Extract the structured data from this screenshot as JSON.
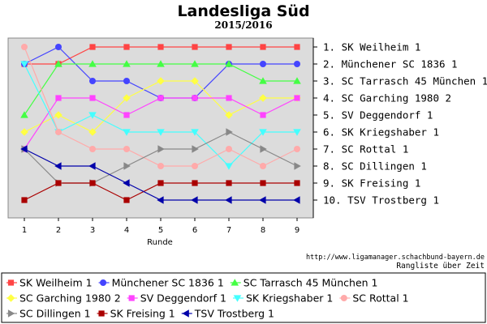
{
  "chart_data": {
    "type": "line",
    "title": "Landesliga Süd",
    "subtitle": "2015/2016",
    "xlabel": "Runde",
    "ylabel": "",
    "x": [
      1,
      2,
      3,
      4,
      5,
      6,
      7,
      8,
      9
    ],
    "ylim": [
      1,
      10
    ],
    "y_inverted": true,
    "grid": false,
    "rank_labels": [
      "1.  SK Weilheim 1",
      "2.  Münchener SC 1836 1",
      "3.  SC Tarrasch 45 München 1",
      "4.  SC Garching 1980 2",
      "5.  SV Deggendorf 1",
      "6.  SK Kriegshaber 1",
      "7.  SC Rottal 1",
      "8.  SC Dillingen 1",
      "9.  SK Freising 1",
      "10. TSV Trostberg 1"
    ],
    "series": [
      {
        "name": "SK Weilheim 1",
        "color": "#ff4444",
        "marker": "square",
        "values": [
          2,
          2,
          1,
          1,
          1,
          1,
          1,
          1,
          1
        ]
      },
      {
        "name": "Münchener SC 1836 1",
        "color": "#4444ff",
        "marker": "circle",
        "values": [
          2,
          1,
          3,
          3,
          4,
          4,
          2,
          2,
          2
        ]
      },
      {
        "name": "SC Tarrasch 45 München 1",
        "color": "#44ff44",
        "marker": "triangle-up",
        "values": [
          5,
          2,
          2,
          2,
          2,
          2,
          2,
          3,
          3
        ]
      },
      {
        "name": "SC Garching 1980 2",
        "color": "#ffff44",
        "marker": "diamond",
        "values": [
          6,
          5,
          6,
          4,
          3,
          3,
          5,
          4,
          4
        ]
      },
      {
        "name": "SV Deggendorf 1",
        "color": "#ff44ff",
        "marker": "square",
        "values": [
          7,
          4,
          4,
          5,
          4,
          4,
          4,
          5,
          4
        ]
      },
      {
        "name": "SK Kriegshaber 1",
        "color": "#44ffff",
        "marker": "triangle-down",
        "values": [
          2,
          6,
          5,
          6,
          6,
          6,
          8,
          6,
          6
        ]
      },
      {
        "name": "SC Rottal 1",
        "color": "#ffaaaa",
        "marker": "circle",
        "values": [
          1,
          6,
          7,
          7,
          8,
          8,
          7,
          8,
          7
        ]
      },
      {
        "name": "SC Dillingen 1",
        "color": "#888888",
        "marker": "triangle-right",
        "values": [
          7,
          9,
          9,
          8,
          7,
          7,
          6,
          7,
          8
        ]
      },
      {
        "name": "SK Freising 1",
        "color": "#aa0000",
        "marker": "square",
        "values": [
          10,
          9,
          9,
          10,
          9,
          9,
          9,
          9,
          9
        ]
      },
      {
        "name": "TSV Trostberg 1",
        "color": "#0000aa",
        "marker": "triangle-left",
        "values": [
          7,
          8,
          8,
          9,
          10,
          10,
          10,
          10,
          10
        ]
      }
    ],
    "url": "http://www.ligamanager.schachbund-bayern.de",
    "caption": "Rangliste über Zeit"
  }
}
